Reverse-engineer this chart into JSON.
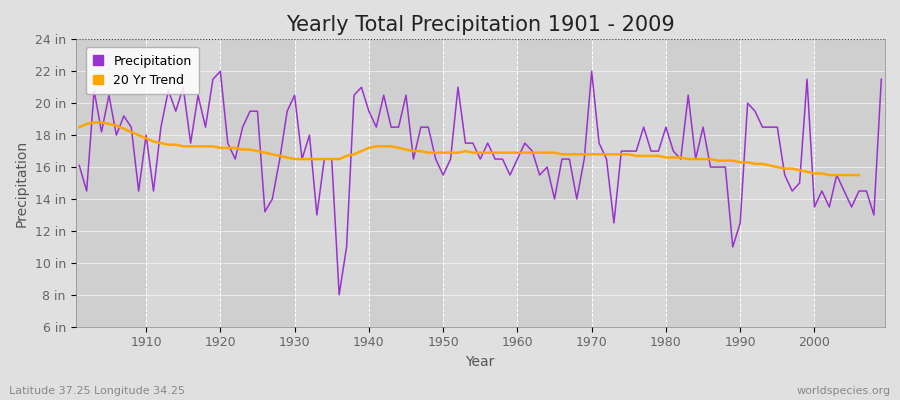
{
  "title": "Yearly Total Precipitation 1901 - 2009",
  "xlabel": "Year",
  "ylabel": "Precipitation",
  "lat_lon_label": "Latitude 37.25 Longitude 34.25",
  "source_label": "worldspecies.org",
  "years": [
    1901,
    1902,
    1903,
    1904,
    1905,
    1906,
    1907,
    1908,
    1909,
    1910,
    1911,
    1912,
    1913,
    1914,
    1915,
    1916,
    1917,
    1918,
    1919,
    1920,
    1921,
    1922,
    1923,
    1924,
    1925,
    1926,
    1927,
    1928,
    1929,
    1930,
    1931,
    1932,
    1933,
    1934,
    1935,
    1936,
    1937,
    1938,
    1939,
    1940,
    1941,
    1942,
    1943,
    1944,
    1945,
    1946,
    1947,
    1948,
    1949,
    1950,
    1951,
    1952,
    1953,
    1954,
    1955,
    1956,
    1957,
    1958,
    1959,
    1960,
    1961,
    1962,
    1963,
    1964,
    1965,
    1966,
    1967,
    1968,
    1969,
    1970,
    1971,
    1972,
    1973,
    1974,
    1975,
    1976,
    1977,
    1978,
    1979,
    1980,
    1981,
    1982,
    1983,
    1984,
    1985,
    1986,
    1987,
    1988,
    1989,
    1990,
    1991,
    1992,
    1993,
    1994,
    1995,
    1996,
    1997,
    1998,
    1999,
    2000,
    2001,
    2002,
    2003,
    2004,
    2005,
    2006,
    2007,
    2008,
    2009
  ],
  "precip": [
    16.1,
    14.5,
    20.8,
    18.2,
    20.5,
    18.0,
    19.2,
    18.5,
    14.5,
    18.0,
    14.5,
    18.5,
    20.8,
    19.5,
    21.0,
    17.5,
    20.5,
    18.5,
    21.5,
    22.0,
    17.5,
    16.5,
    18.5,
    19.5,
    19.5,
    13.2,
    14.0,
    16.5,
    19.5,
    20.5,
    16.5,
    18.0,
    13.0,
    16.5,
    16.5,
    8.0,
    11.0,
    20.5,
    21.0,
    19.5,
    18.5,
    20.5,
    18.5,
    18.5,
    20.5,
    16.5,
    18.5,
    18.5,
    16.5,
    15.5,
    16.5,
    21.0,
    17.5,
    17.5,
    16.5,
    17.5,
    16.5,
    16.5,
    15.5,
    16.5,
    17.5,
    17.0,
    15.5,
    16.0,
    14.0,
    16.5,
    16.5,
    14.0,
    16.5,
    22.0,
    17.5,
    16.5,
    12.5,
    17.0,
    17.0,
    17.0,
    18.5,
    17.0,
    17.0,
    18.5,
    17.0,
    16.5,
    20.5,
    16.5,
    18.5,
    16.0,
    16.0,
    16.0,
    11.0,
    12.5,
    20.0,
    19.5,
    18.5,
    18.5,
    18.5,
    15.5,
    14.5,
    15.0,
    21.5,
    13.5,
    14.5,
    13.5,
    15.5,
    14.5,
    13.5,
    14.5,
    14.5,
    13.0,
    21.5
  ],
  "trend": [
    18.5,
    18.7,
    18.8,
    18.8,
    18.7,
    18.6,
    18.4,
    18.2,
    18.0,
    17.8,
    17.6,
    17.5,
    17.4,
    17.4,
    17.3,
    17.3,
    17.3,
    17.3,
    17.3,
    17.2,
    17.2,
    17.2,
    17.1,
    17.1,
    17.0,
    16.9,
    16.8,
    16.7,
    16.6,
    16.5,
    16.5,
    16.5,
    16.5,
    16.5,
    16.5,
    16.5,
    16.7,
    16.8,
    17.0,
    17.2,
    17.3,
    17.3,
    17.3,
    17.2,
    17.1,
    17.0,
    17.0,
    16.9,
    16.9,
    16.9,
    16.9,
    16.9,
    17.0,
    16.9,
    16.9,
    16.9,
    16.9,
    16.9,
    16.9,
    16.9,
    16.9,
    16.9,
    16.9,
    16.9,
    16.9,
    16.8,
    16.8,
    16.8,
    16.8,
    16.8,
    16.8,
    16.8,
    16.8,
    16.8,
    16.8,
    16.7,
    16.7,
    16.7,
    16.7,
    16.6,
    16.6,
    16.6,
    16.5,
    16.5,
    16.5,
    16.5,
    16.4,
    16.4,
    16.4,
    16.3,
    16.3,
    16.2,
    16.2,
    16.1,
    16.0,
    15.9,
    15.9,
    15.8,
    15.7,
    15.6,
    15.6,
    15.5,
    15.5,
    15.5,
    15.5,
    15.5,
    null,
    null,
    null
  ],
  "precip_color": "#9932CC",
  "trend_color": "#FFA500",
  "bg_color": "#E0E0E0",
  "plot_bg_color": "#D8D8D8",
  "grid_color": "#CCCCCC",
  "ylim": [
    6,
    24
  ],
  "yticks": [
    6,
    8,
    10,
    12,
    14,
    16,
    18,
    20,
    22,
    24
  ],
  "ytick_labels": [
    "6 in",
    "8 in",
    "10 in",
    "12 in",
    "14 in",
    "16 in",
    "18 in",
    "20 in",
    "22 in",
    "24 in"
  ],
  "xlim": [
    1900.5,
    2009.5
  ],
  "xticks": [
    1910,
    1920,
    1930,
    1940,
    1950,
    1960,
    1970,
    1980,
    1990,
    2000
  ],
  "title_fontsize": 15,
  "axis_label_fontsize": 10,
  "tick_fontsize": 9,
  "legend_fontsize": 9,
  "footer_fontsize": 8
}
